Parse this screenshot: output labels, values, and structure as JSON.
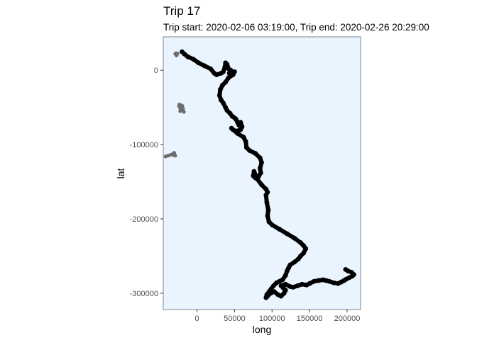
{
  "chart_data": {
    "type": "scatter",
    "title": "Trip 17",
    "subtitle": "Trip start: 2020-02-06 03:19:00, Trip end: 2020-02-26 20:29:00",
    "xlabel": "long",
    "ylabel": "lat",
    "xlim": [
      -45000,
      218000
    ],
    "ylim": [
      -322000,
      45000
    ],
    "xticks": [
      0,
      50000,
      100000,
      150000,
      200000
    ],
    "xtick_labels": [
      "0",
      "50000",
      "100000",
      "150000",
      "200000"
    ],
    "yticks": [
      0,
      -100000,
      -200000,
      -300000
    ],
    "ytick_labels": [
      "0",
      "-100000",
      "-200000",
      "-300000"
    ],
    "grid": false,
    "legend": "none",
    "colors": {
      "panel_background": "#eaf4ff",
      "panel_border": "#5f6a78",
      "trip_track": "#000000",
      "other_points": "#6e6e6e"
    },
    "series": [
      {
        "color": "#000000",
        "x": [
          -20000,
          -17000,
          -12000,
          -5000,
          2000,
          10000,
          18000,
          23000,
          26000,
          32000,
          35000,
          37000,
          38000,
          40000,
          42000,
          45000,
          43000,
          50000,
          48000,
          42000,
          38000,
          34000,
          31000,
          30000,
          32000,
          35000,
          38000,
          40000,
          44000,
          47000,
          50000,
          52000,
          54000,
          55000,
          56000,
          58000,
          60000,
          58000,
          52000,
          48000,
          46000,
          54000,
          62000,
          65000,
          66000,
          70000,
          78000,
          84000,
          86000,
          84000,
          85000,
          82000,
          78000,
          75000,
          76000,
          80000,
          86000,
          92000,
          94000,
          92000,
          93000,
          95000,
          94000,
          96000,
          100000,
          110000,
          120000,
          130000,
          138000,
          142000,
          145000,
          142000,
          138000,
          135000,
          130000,
          124000,
          122000,
          120000,
          118000,
          114000,
          110000,
          106000,
          102000,
          99000,
          96000,
          93000,
          92000,
          94000,
          98000,
          103000,
          108000,
          112000,
          116000,
          118000,
          115000,
          112000,
          118000,
          124000,
          128000,
          134000,
          140000,
          146000,
          150000,
          156000,
          162000,
          168000,
          172000,
          176000,
          182000,
          188000,
          192000,
          196000,
          199000,
          203000,
          207000,
          209000,
          206000,
          201000,
          198000
        ],
        "y": [
          25000,
          22000,
          18000,
          15000,
          10000,
          6000,
          2000,
          -4000,
          -6000,
          -4000,
          -2000,
          4000,
          10000,
          8000,
          2000,
          0,
          -4000,
          -2000,
          -6000,
          -10000,
          -16000,
          -20000,
          -26000,
          -34000,
          -40000,
          -44000,
          -50000,
          -54000,
          -58000,
          -62000,
          -64000,
          -66000,
          -70000,
          -72000,
          -74000,
          -70000,
          -76000,
          -80000,
          -82000,
          -80000,
          -78000,
          -85000,
          -90000,
          -96000,
          -104000,
          -108000,
          -112000,
          -118000,
          -124000,
          -132000,
          -138000,
          -143000,
          -145000,
          -142000,
          -136000,
          -146000,
          -154000,
          -160000,
          -164000,
          -168000,
          -178000,
          -188000,
          -196000,
          -204000,
          -208000,
          -214000,
          -220000,
          -226000,
          -232000,
          -236000,
          -240000,
          -246000,
          -250000,
          -254000,
          -258000,
          -262000,
          -266000,
          -270000,
          -276000,
          -282000,
          -284000,
          -286000,
          -290000,
          -294000,
          -298000,
          -302000,
          -306000,
          -304000,
          -300000,
          -298000,
          -302000,
          -304000,
          -300000,
          -296000,
          -293000,
          -290000,
          -288000,
          -291000,
          -292000,
          -290000,
          -288000,
          -289000,
          -287000,
          -284000,
          -283000,
          -282000,
          -283000,
          -284000,
          -286000,
          -287000,
          -285000,
          -283000,
          -281000,
          -279000,
          -277000,
          -275000,
          -272000,
          -270000,
          -268000
        ]
      },
      {
        "color": "#6e6e6e",
        "x": [
          -29000,
          -28000,
          -27000,
          -26000,
          -27500,
          -24000,
          -23000,
          -22000,
          -21000,
          -20000,
          -19000,
          -22500,
          -21500,
          -20500,
          -19500,
          -17500,
          -18500,
          -23500,
          -30000,
          -31000,
          -32000,
          -29000,
          -30500,
          -33000,
          -36000,
          -39000,
          -42000
        ],
        "y": [
          22000,
          23000,
          21000,
          22500,
          20000,
          -48000,
          -50000,
          -52000,
          -49000,
          -53000,
          -51000,
          -55000,
          -47000,
          -54000,
          -48000,
          -56000,
          -52000,
          -46000,
          -113000,
          -112000,
          -114000,
          -115000,
          -111000,
          -113000,
          -114000,
          -115000,
          -116000
        ]
      }
    ]
  }
}
